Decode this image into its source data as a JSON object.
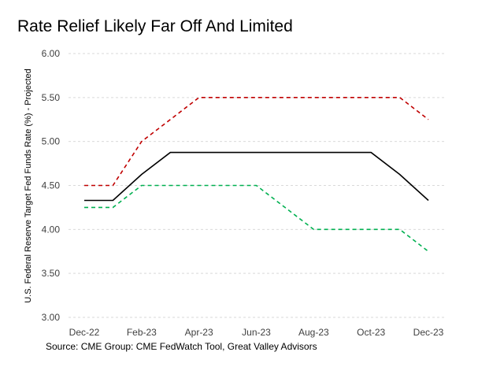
{
  "title": "Rate Relief Likely Far Off And Limited",
  "source": "Source: CME Group: CME FedWatch Tool, Great Valley Advisors",
  "chart_data": {
    "type": "line",
    "title": "Rate Relief Likely Far Off And Limited",
    "ylabel": "U.S. Federal Reserve Target Fed Funds Rate (%) - Projected",
    "xlabel": "",
    "ylim": [
      3.0,
      6.0
    ],
    "yticks": [
      "3.00",
      "3.50",
      "4.00",
      "4.50",
      "5.00",
      "5.50",
      "6.00"
    ],
    "x": [
      "Dec-22",
      "Jan-23",
      "Feb-23",
      "Mar-23",
      "Apr-23",
      "May-23",
      "Jun-23",
      "Jul-23",
      "Aug-23",
      "Sep-23",
      "Oct-23",
      "Nov-23",
      "Dec-23"
    ],
    "xticks": [
      "Dec-22",
      "Feb-23",
      "Apr-23",
      "Jun-23",
      "Aug-23",
      "Oct-23",
      "Dec-23"
    ],
    "grid": true,
    "legend": "none",
    "series": [
      {
        "color": "#c00000",
        "style": "dashed",
        "values": [
          4.5,
          4.5,
          5.0,
          5.25,
          5.5,
          5.5,
          5.5,
          5.5,
          5.5,
          5.5,
          5.5,
          5.5,
          5.25
        ]
      },
      {
        "color": "#000000",
        "style": "solid",
        "values": [
          4.33,
          4.33,
          4.625,
          4.875,
          4.875,
          4.875,
          4.875,
          4.875,
          4.875,
          4.875,
          4.875,
          4.625,
          4.33
        ]
      },
      {
        "color": "#00b050",
        "style": "dashed",
        "values": [
          4.25,
          4.25,
          4.5,
          4.5,
          4.5,
          4.5,
          4.5,
          4.25,
          4.0,
          4.0,
          4.0,
          4.0,
          3.75
        ]
      }
    ]
  }
}
